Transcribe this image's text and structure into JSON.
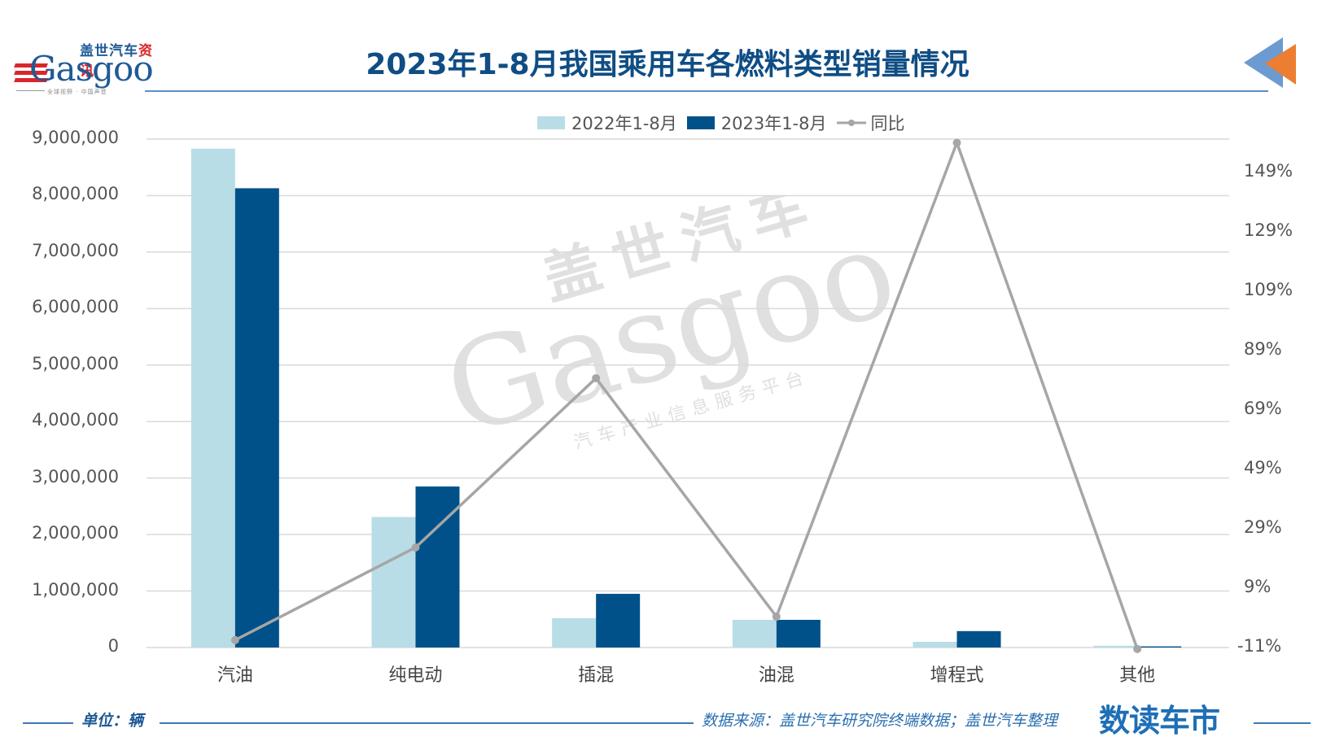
{
  "header": {
    "title": "2023年1-8月我国乘用车各燃料类型销量情况",
    "logo": {
      "cn_text_blue": "盖世汽车",
      "cn_text_red": "资讯",
      "en_text": "Gasgoo",
      "slogan": "全球视野 · 中国声音"
    },
    "corner_icon": "double-triangle-arrow-left-icon"
  },
  "legend": {
    "items": [
      {
        "label": "2022年1-8月",
        "color": "#b8dde7",
        "type": "bar"
      },
      {
        "label": "2023年1-8月",
        "color": "#00518a",
        "type": "bar"
      },
      {
        "label": "同比",
        "color": "#a6a6a6",
        "type": "line"
      }
    ]
  },
  "axes": {
    "left_ticks": [
      "9,000,000",
      "8,000,000",
      "7,000,000",
      "6,000,000",
      "5,000,000",
      "4,000,000",
      "3,000,000",
      "2,000,000",
      "1,000,000",
      "0"
    ],
    "right_ticks": [
      "149%",
      "129%",
      "109%",
      "89%",
      "69%",
      "49%",
      "29%",
      "9%",
      "-11%"
    ]
  },
  "watermark": {
    "cn": "盖世汽车",
    "en": "Gasgoo",
    "sub": "汽车产业信息服务平台"
  },
  "footer": {
    "unit": "单位：辆",
    "source": "数据来源：盖世汽车研究院终端数据；盖世汽车整理",
    "brand": "数读车市"
  },
  "chart_data": {
    "type": "bar",
    "title": "2023年1-8月我国乘用车各燃料类型销量情况",
    "categories": [
      "汽油",
      "纯电动",
      "插混",
      "油混",
      "增程式",
      "其他"
    ],
    "series": [
      {
        "name": "2022年1-8月",
        "type": "bar",
        "axis": "left",
        "color": "#b8dde7",
        "values": [
          8830000,
          2310000,
          520000,
          490000,
          100000,
          30000
        ]
      },
      {
        "name": "2023年1-8月",
        "type": "bar",
        "axis": "left",
        "color": "#00518a",
        "values": [
          8130000,
          2850000,
          950000,
          490000,
          290000,
          20000
        ]
      },
      {
        "name": "同比",
        "type": "line",
        "axis": "right",
        "color": "#a6a6a6",
        "unit": "%",
        "values": [
          -8.5,
          22.7,
          79.7,
          -0.6,
          159,
          -11.5
        ]
      }
    ],
    "xlabel": "",
    "ylabel": "单位：辆",
    "ylim": [
      0,
      9000000
    ],
    "y2lim": [
      -11,
      149
    ],
    "y2_ticks": [
      -11,
      9,
      29,
      49,
      69,
      89,
      109,
      129,
      149
    ],
    "grid": true,
    "legend_position": "top"
  }
}
